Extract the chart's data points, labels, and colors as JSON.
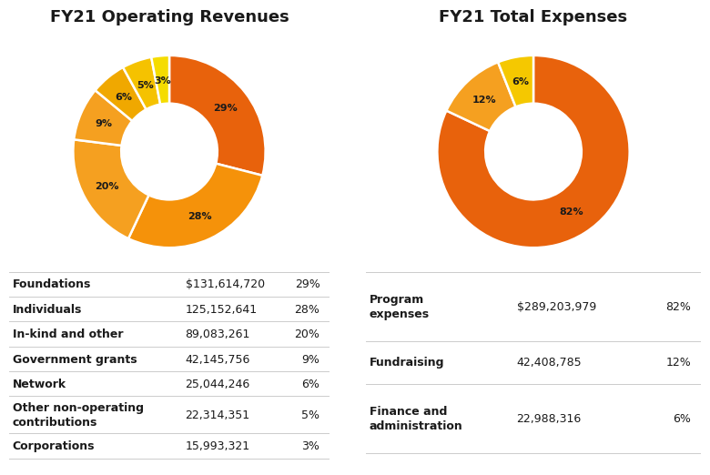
{
  "rev_title": "FY21 Operating Revenues",
  "rev_labels": [
    "Foundations",
    "Individuals",
    "In-kind and other",
    "Government grants",
    "Network",
    "Other non-operating\ncontributions",
    "Corporations"
  ],
  "rev_values": [
    29,
    28,
    20,
    9,
    6,
    5,
    3
  ],
  "rev_amounts": [
    "$131,614,720",
    "125,152,641",
    "89,083,261",
    "42,145,756",
    "25,044,246",
    "22,314,351",
    "15,993,321"
  ],
  "rev_pcts": [
    "29%",
    "28%",
    "20%",
    "9%",
    "6%",
    "5%",
    "3%"
  ],
  "rev_colors": [
    "#E8620C",
    "#F5920A",
    "#F5A020",
    "#F5A020",
    "#F0A800",
    "#F5C200",
    "#F5DC00"
  ],
  "rev_wedge_labels": [
    "29%",
    "28%",
    "20%",
    "9%",
    "6%",
    "5%",
    "3%"
  ],
  "exp_title": "FY21 Total Expenses",
  "exp_labels": [
    "Program\nexpenses",
    "Fundraising",
    "Finance and\nadministration"
  ],
  "exp_values": [
    82,
    12,
    6
  ],
  "exp_amounts": [
    "$289,203,979",
    "42,408,785",
    "22,988,316"
  ],
  "exp_pcts": [
    "82%",
    "12%",
    "6%"
  ],
  "exp_colors": [
    "#E8620C",
    "#F5A020",
    "#F5C800"
  ],
  "exp_wedge_labels": [
    "82%",
    "12%",
    "6%"
  ],
  "bg_color": "#FFFFFF",
  "text_color": "#1A1A1A",
  "title_fontsize": 13,
  "table_fontsize": 9
}
